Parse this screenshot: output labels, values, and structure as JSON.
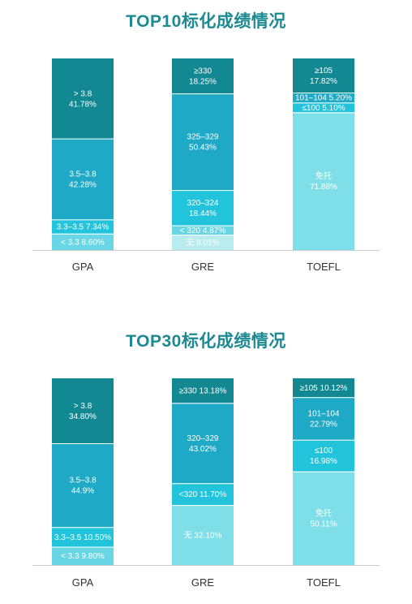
{
  "colors": {
    "title": "#1b8a93",
    "shade_1": "#128892",
    "shade_2": "#1ea9c6",
    "shade_3": "#22c4dc",
    "shade_4": "#69d6e6",
    "shade_5": "#7fdfe8",
    "shade_6": "#b8ecef",
    "axis": "#cccccc"
  },
  "chart_data": [
    {
      "type": "bar",
      "stacked": true,
      "percent": true,
      "title": "TOP10标化成绩情况",
      "categories": [
        "GPA",
        "GRE",
        "TOEFL"
      ],
      "columns": [
        {
          "category": "GPA",
          "segments": [
            {
              "range": "> 3.8",
              "percent_text": "41.78%",
              "value": 41.78,
              "shade": "shade_1",
              "layout": "two-line"
            },
            {
              "range": "3.5–3.8",
              "percent_text": "42.28%",
              "value": 42.28,
              "shade": "shade_2",
              "layout": "two-line"
            },
            {
              "range": "3.3–3.5",
              "percent_text": "7.34%",
              "value": 7.34,
              "shade": "shade_3",
              "layout": "one-line"
            },
            {
              "range": "< 3.3",
              "percent_text": "8.60%",
              "value": 8.6,
              "shade": "shade_4",
              "layout": "one-line"
            }
          ]
        },
        {
          "category": "GRE",
          "segments": [
            {
              "range": "≥330",
              "percent_text": "18.25%",
              "value": 18.25,
              "shade": "shade_1",
              "layout": "two-line"
            },
            {
              "range": "325–329",
              "percent_text": "50.43%",
              "value": 50.43,
              "shade": "shade_2",
              "layout": "two-line"
            },
            {
              "range": "320–324",
              "percent_text": "18.44%",
              "value": 18.44,
              "shade": "shade_3",
              "layout": "two-line"
            },
            {
              "range": "< 320",
              "percent_text": "4.87%",
              "value": 4.87,
              "shade": "shade_4",
              "layout": "one-line"
            },
            {
              "range": "无",
              "percent_text": "8.01%",
              "value": 8.01,
              "shade": "shade_6",
              "layout": "one-line"
            }
          ]
        },
        {
          "category": "TOEFL",
          "segments": [
            {
              "range": "≥105",
              "percent_text": "17.82%",
              "value": 17.82,
              "shade": "shade_1",
              "layout": "two-line"
            },
            {
              "range": "101–104",
              "percent_text": "5.20%",
              "value": 5.2,
              "shade": "shade_2",
              "layout": "one-line"
            },
            {
              "range": "≤100",
              "percent_text": "5.10%",
              "value": 5.1,
              "shade": "shade_3",
              "layout": "one-line"
            },
            {
              "range": "免托",
              "percent_text": "71.88%",
              "value": 71.88,
              "shade": "shade_5",
              "layout": "two-line"
            }
          ]
        }
      ]
    },
    {
      "type": "bar",
      "stacked": true,
      "percent": true,
      "title": "TOP30标化成绩情况",
      "categories": [
        "GPA",
        "GRE",
        "TOEFL"
      ],
      "columns": [
        {
          "category": "GPA",
          "segments": [
            {
              "range": "> 3.8",
              "percent_text": "34.80%",
              "value": 34.8,
              "shade": "shade_1",
              "layout": "two-line"
            },
            {
              "range": "3.5–3.8",
              "percent_text": "44.9%",
              "value": 44.9,
              "shade": "shade_2",
              "layout": "two-line"
            },
            {
              "range": "3.3–3.5",
              "percent_text": "10.50%",
              "value": 10.5,
              "shade": "shade_3",
              "layout": "one-line"
            },
            {
              "range": "< 3.3",
              "percent_text": "9.80%",
              "value": 9.8,
              "shade": "shade_4",
              "layout": "one-line"
            }
          ]
        },
        {
          "category": "GRE",
          "segments": [
            {
              "range": "≥330",
              "percent_text": "13.18%",
              "value": 13.18,
              "shade": "shade_1",
              "layout": "one-line"
            },
            {
              "range": "320–329",
              "percent_text": "43.02%",
              "value": 43.02,
              "shade": "shade_2",
              "layout": "two-line"
            },
            {
              "range": "<320",
              "percent_text": "11.70%",
              "value": 11.7,
              "shade": "shade_3",
              "layout": "one-line"
            },
            {
              "range": "无",
              "percent_text": "32.10%",
              "value": 32.1,
              "shade": "shade_5",
              "layout": "one-line"
            }
          ]
        },
        {
          "category": "TOEFL",
          "segments": [
            {
              "range": "≥105",
              "percent_text": "10.12%",
              "value": 10.12,
              "shade": "shade_1",
              "layout": "one-line"
            },
            {
              "range": "101–104",
              "percent_text": "22.79%",
              "value": 22.79,
              "shade": "shade_2",
              "layout": "two-line"
            },
            {
              "range": "≤100",
              "percent_text": "16.98%",
              "value": 16.98,
              "shade": "shade_3",
              "layout": "two-line"
            },
            {
              "range": "免托",
              "percent_text": "50.11%",
              "value": 50.11,
              "shade": "shade_5",
              "layout": "two-line"
            }
          ]
        }
      ]
    }
  ]
}
